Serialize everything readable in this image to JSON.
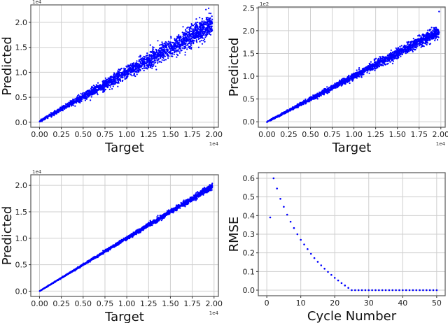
{
  "chart_data": [
    {
      "type": "scatter",
      "title": "",
      "xlabel": "Target",
      "ylabel": "Predicted",
      "x_offset_label": "1e4",
      "y_offset_label": "1e4",
      "xticks": [
        "0.00",
        "0.25",
        "0.50",
        "0.75",
        "1.00",
        "1.25",
        "1.50",
        "1.75",
        "2.00"
      ],
      "yticks": [
        "0.0",
        "0.5",
        "1.0",
        "1.5",
        "2.0"
      ],
      "xlim": [
        -0.1,
        2.05
      ],
      "ylim": [
        -0.1,
        2.35
      ],
      "grid": true,
      "color": "#0000ff",
      "description": "Predicted vs Target, wide spread increasing with target; points up to ~2.2e4",
      "trend": {
        "slope": 1.0,
        "spread_at_max": 0.25
      },
      "series_sample": [
        [
          0.0,
          0.02
        ],
        [
          0.25,
          0.25
        ],
        [
          0.5,
          0.5
        ],
        [
          0.75,
          0.74
        ],
        [
          1.0,
          1.0
        ],
        [
          1.25,
          1.25
        ],
        [
          1.5,
          1.48
        ],
        [
          1.75,
          1.75
        ],
        [
          1.95,
          2.0
        ]
      ]
    },
    {
      "type": "scatter",
      "title": "",
      "xlabel": "Target",
      "ylabel": "Predicted",
      "x_offset_label": "1e4",
      "y_offset_label": "1e2",
      "xticks": [
        "0.00",
        "0.25",
        "0.50",
        "0.75",
        "1.00",
        "1.25",
        "1.50",
        "1.75",
        "2.00"
      ],
      "yticks": [
        "0.0",
        "0.5",
        "1.0",
        "1.5",
        "2.0",
        "2.5"
      ],
      "xlim": [
        -0.1,
        2.05
      ],
      "ylim": [
        -0.12,
        2.52
      ],
      "grid": true,
      "color": "#0000ff",
      "description": "Predicted vs Target, moderate spread; outlier near 2.42",
      "trend": {
        "slope": 1.0,
        "spread_at_max": 0.15
      },
      "series_sample": [
        [
          0.0,
          0.0
        ],
        [
          0.25,
          0.25
        ],
        [
          0.5,
          0.5
        ],
        [
          0.75,
          0.75
        ],
        [
          1.0,
          1.0
        ],
        [
          1.25,
          1.25
        ],
        [
          1.5,
          1.5
        ],
        [
          1.75,
          1.75
        ],
        [
          1.98,
          2.42
        ]
      ]
    },
    {
      "type": "scatter",
      "title": "",
      "xlabel": "Target",
      "ylabel": "Predicted",
      "x_offset_label": "1e4",
      "y_offset_label": "1e4",
      "xticks": [
        "0.00",
        "0.25",
        "0.50",
        "0.75",
        "1.00",
        "1.25",
        "1.50",
        "1.75",
        "2.00"
      ],
      "yticks": [
        "0.0",
        "0.5",
        "1.0",
        "1.5",
        "2.0"
      ],
      "xlim": [
        -0.1,
        2.05
      ],
      "ylim": [
        -0.1,
        2.2
      ],
      "grid": true,
      "color": "#0000ff",
      "description": "Predicted vs Target, tight fit along y=x",
      "trend": {
        "slope": 1.0,
        "spread_at_max": 0.06
      },
      "series_sample": [
        [
          0.0,
          0.0
        ],
        [
          0.5,
          0.5
        ],
        [
          1.0,
          1.0
        ],
        [
          1.5,
          1.5
        ],
        [
          2.0,
          2.1
        ]
      ]
    },
    {
      "type": "scatter",
      "title": "",
      "xlabel": "Cycle Number",
      "ylabel": "RMSE",
      "xticks": [
        "0",
        "10",
        "20",
        "30",
        "40",
        "50"
      ],
      "yticks": [
        "0.0",
        "0.1",
        "0.2",
        "0.3",
        "0.4",
        "0.5",
        "0.6"
      ],
      "xlim": [
        -2.5,
        52.5
      ],
      "ylim": [
        -0.03,
        0.63
      ],
      "grid": true,
      "color": "#0000ff",
      "x": [
        1,
        2,
        3,
        4,
        5,
        6,
        7,
        8,
        9,
        10,
        11,
        12,
        13,
        14,
        15,
        16,
        17,
        18,
        19,
        20,
        21,
        22,
        23,
        24,
        25,
        26,
        27,
        28,
        29,
        30,
        31,
        32,
        33,
        34,
        35,
        36,
        37,
        38,
        39,
        40,
        41,
        42,
        43,
        44,
        45,
        46,
        47,
        48,
        49,
        50
      ],
      "values": [
        0.39,
        0.6,
        0.545,
        0.49,
        0.447,
        0.405,
        0.367,
        0.333,
        0.3,
        0.27,
        0.245,
        0.22,
        0.195,
        0.172,
        0.152,
        0.133,
        0.115,
        0.098,
        0.082,
        0.066,
        0.052,
        0.038,
        0.025,
        0.012,
        0.0,
        0.0,
        0.0,
        0.0,
        0.0,
        0.0,
        0.0,
        0.0,
        0.0,
        0.0,
        0.0,
        0.0,
        0.0,
        0.0,
        0.0,
        0.0,
        0.0,
        0.0,
        0.0,
        0.0,
        0.0,
        0.0,
        0.0,
        0.0,
        0.0,
        0.0
      ]
    }
  ],
  "panels": {
    "p1": {
      "xlabel": "Target",
      "ylabel": "Predicted",
      "xoff": "1e4",
      "yoff": "1e4"
    },
    "p2": {
      "xlabel": "Target",
      "ylabel": "Predicted",
      "xoff": "1e4",
      "yoff": "1e2"
    },
    "p3": {
      "xlabel": "Target",
      "ylabel": "Predicted",
      "xoff": "1e4",
      "yoff": "1e4"
    },
    "p4": {
      "xlabel": "Cycle Number",
      "ylabel": "RMSE"
    }
  }
}
